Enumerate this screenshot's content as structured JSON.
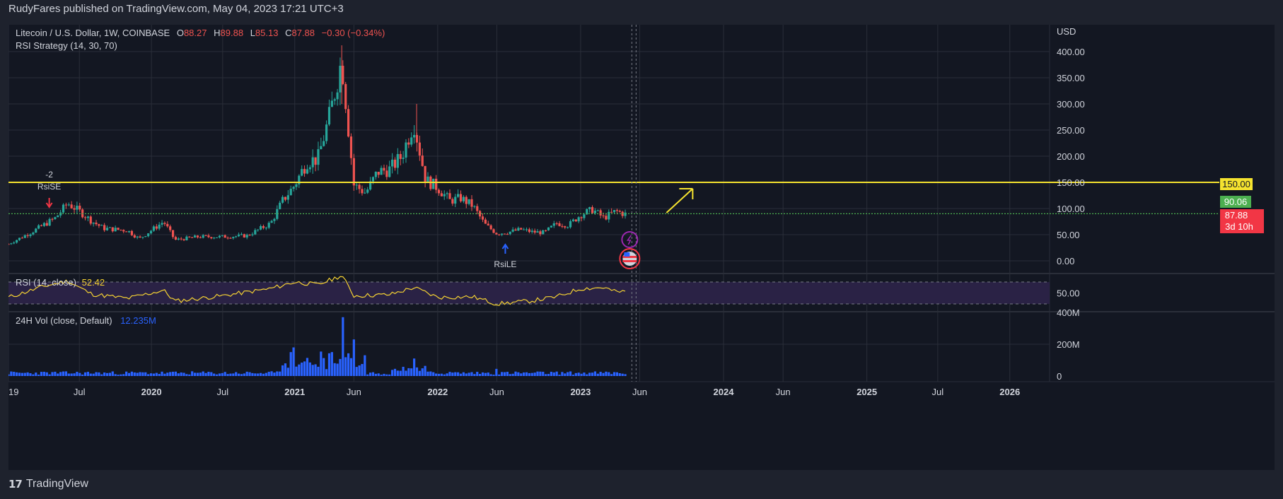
{
  "header": {
    "published": "RudyFares published on TradingView.com, May 04, 2023 17:21 UTC+3"
  },
  "legend": {
    "symbol": "Litecoin / U.S. Dollar, 1W, COINBASE",
    "o_label": "O",
    "o_value": "88.27",
    "h_label": "H",
    "h_value": "89.88",
    "l_label": "L",
    "l_value": "85.13",
    "c_label": "C",
    "c_value": "87.88",
    "change": "−0.30 (−0.34%)",
    "strategy": "RSI Strategy (14, 30, 70)"
  },
  "rsi": {
    "label": "RSI (14, close)",
    "value": "52.42"
  },
  "volume": {
    "label": "24H Vol (close, Default)",
    "value": "12.235M"
  },
  "footer": {
    "logo": "TradingView"
  },
  "colors": {
    "background": "#131722",
    "grid": "#2a2e39",
    "up": "#26a69a",
    "down": "#ef5350",
    "line150": "#f5e32f",
    "line90": "#4caf50",
    "rsi_line": "#f5d233",
    "rsi_band": "#2a2245",
    "volume": "#2962ff",
    "arrow": "#f5e32f"
  },
  "chart_data": [
    {
      "type": "candlestick",
      "title": "Litecoin / U.S. Dollar, 1W, COINBASE",
      "currency": "USD",
      "ylim": [
        0,
        420
      ],
      "y_ticks": [
        "400.00",
        "350.00",
        "300.00",
        "250.00",
        "200.00",
        "150.00",
        "100.00",
        "50.00",
        "0.00"
      ],
      "x_ticks": [
        "19",
        "Jul",
        "2020",
        "Jul",
        "2021",
        "Jun",
        "2022",
        "Jun",
        "2023",
        "Jun",
        "2024",
        "Jun",
        "2025",
        "Jul",
        "2026"
      ],
      "x_range": [
        "2019-01",
        "2026-04"
      ],
      "horizontal_lines": [
        {
          "value": 150.0,
          "label": "150.00",
          "style": "yellow"
        },
        {
          "value": 90.06,
          "label": "90.06",
          "style": "green-dotted"
        }
      ],
      "price_tag": {
        "value": 87.88,
        "label": "87.88",
        "countdown": "3d 10h"
      },
      "signals": [
        {
          "name": "RsiSE",
          "qty": "-2",
          "date": "2019-06",
          "direction": "short"
        },
        {
          "name": "RsiLE",
          "date": "2022-06",
          "direction": "long"
        }
      ],
      "weekly_close_path": [
        {
          "d": "2019-01",
          "v": 32
        },
        {
          "d": "2019-03",
          "v": 55
        },
        {
          "d": "2019-05",
          "v": 82
        },
        {
          "d": "2019-06",
          "v": 110
        },
        {
          "d": "2019-07",
          "v": 95
        },
        {
          "d": "2019-08",
          "v": 76
        },
        {
          "d": "2019-09",
          "v": 62
        },
        {
          "d": "2019-11",
          "v": 58
        },
        {
          "d": "2019-12",
          "v": 42
        },
        {
          "d": "2020-02",
          "v": 75
        },
        {
          "d": "2020-03",
          "v": 40
        },
        {
          "d": "2020-05",
          "v": 46
        },
        {
          "d": "2020-07",
          "v": 46
        },
        {
          "d": "2020-09",
          "v": 48
        },
        {
          "d": "2020-11",
          "v": 72
        },
        {
          "d": "2020-12",
          "v": 115
        },
        {
          "d": "2021-01",
          "v": 145
        },
        {
          "d": "2021-02",
          "v": 190
        },
        {
          "d": "2021-03",
          "v": 195
        },
        {
          "d": "2021-04",
          "v": 280
        },
        {
          "d": "2021-05",
          "v": 385
        },
        {
          "d": "2021-06",
          "v": 145
        },
        {
          "d": "2021-07",
          "v": 130
        },
        {
          "d": "2021-08",
          "v": 170
        },
        {
          "d": "2021-09",
          "v": 175
        },
        {
          "d": "2021-10",
          "v": 200
        },
        {
          "d": "2021-11",
          "v": 265
        },
        {
          "d": "2021-12",
          "v": 155
        },
        {
          "d": "2022-01",
          "v": 140
        },
        {
          "d": "2022-02",
          "v": 115
        },
        {
          "d": "2022-03",
          "v": 120
        },
        {
          "d": "2022-04",
          "v": 105
        },
        {
          "d": "2022-05",
          "v": 70
        },
        {
          "d": "2022-06",
          "v": 52
        },
        {
          "d": "2022-07",
          "v": 55
        },
        {
          "d": "2022-08",
          "v": 60
        },
        {
          "d": "2022-09",
          "v": 55
        },
        {
          "d": "2022-10",
          "v": 54
        },
        {
          "d": "2022-11",
          "v": 72
        },
        {
          "d": "2022-12",
          "v": 68
        },
        {
          "d": "2023-01",
          "v": 88
        },
        {
          "d": "2023-02",
          "v": 98
        },
        {
          "d": "2023-03",
          "v": 82
        },
        {
          "d": "2023-04",
          "v": 95
        },
        {
          "d": "2023-05",
          "v": 87.88
        }
      ]
    },
    {
      "type": "line",
      "title": "RSI (14, close)",
      "ylim": [
        20,
        85
      ],
      "y_ticks": [
        "50.00"
      ],
      "bands": [
        30,
        70
      ],
      "last_value": 52.42,
      "path": [
        {
          "d": "2019-01",
          "v": 42
        },
        {
          "d": "2019-04",
          "v": 62
        },
        {
          "d": "2019-06",
          "v": 72
        },
        {
          "d": "2019-08",
          "v": 48
        },
        {
          "d": "2019-11",
          "v": 40
        },
        {
          "d": "2020-02",
          "v": 55
        },
        {
          "d": "2020-03",
          "v": 35
        },
        {
          "d": "2020-07",
          "v": 45
        },
        {
          "d": "2020-11",
          "v": 58
        },
        {
          "d": "2021-01",
          "v": 70
        },
        {
          "d": "2021-03",
          "v": 65
        },
        {
          "d": "2021-05",
          "v": 82
        },
        {
          "d": "2021-06",
          "v": 45
        },
        {
          "d": "2021-09",
          "v": 47
        },
        {
          "d": "2021-11",
          "v": 60
        },
        {
          "d": "2022-01",
          "v": 42
        },
        {
          "d": "2022-04",
          "v": 43
        },
        {
          "d": "2022-06",
          "v": 30
        },
        {
          "d": "2022-09",
          "v": 36
        },
        {
          "d": "2022-11",
          "v": 43
        },
        {
          "d": "2023-01",
          "v": 58
        },
        {
          "d": "2023-03",
          "v": 60
        },
        {
          "d": "2023-04",
          "v": 52
        },
        {
          "d": "2023-05",
          "v": 52.42
        }
      ]
    },
    {
      "type": "bar",
      "title": "24H Vol (close, Default)",
      "ylim": [
        0,
        420
      ],
      "y_unit": "M",
      "y_ticks": [
        "400M",
        "200M",
        "0"
      ],
      "last_value": "12.235M",
      "notable_bars": [
        {
          "d": "2021-01",
          "v": 180
        },
        {
          "d": "2021-05",
          "v": 370
        },
        {
          "d": "2021-06",
          "v": 230
        },
        {
          "d": "2021-11",
          "v": 110
        },
        {
          "d": "2022-06",
          "v": 45
        }
      ]
    }
  ]
}
